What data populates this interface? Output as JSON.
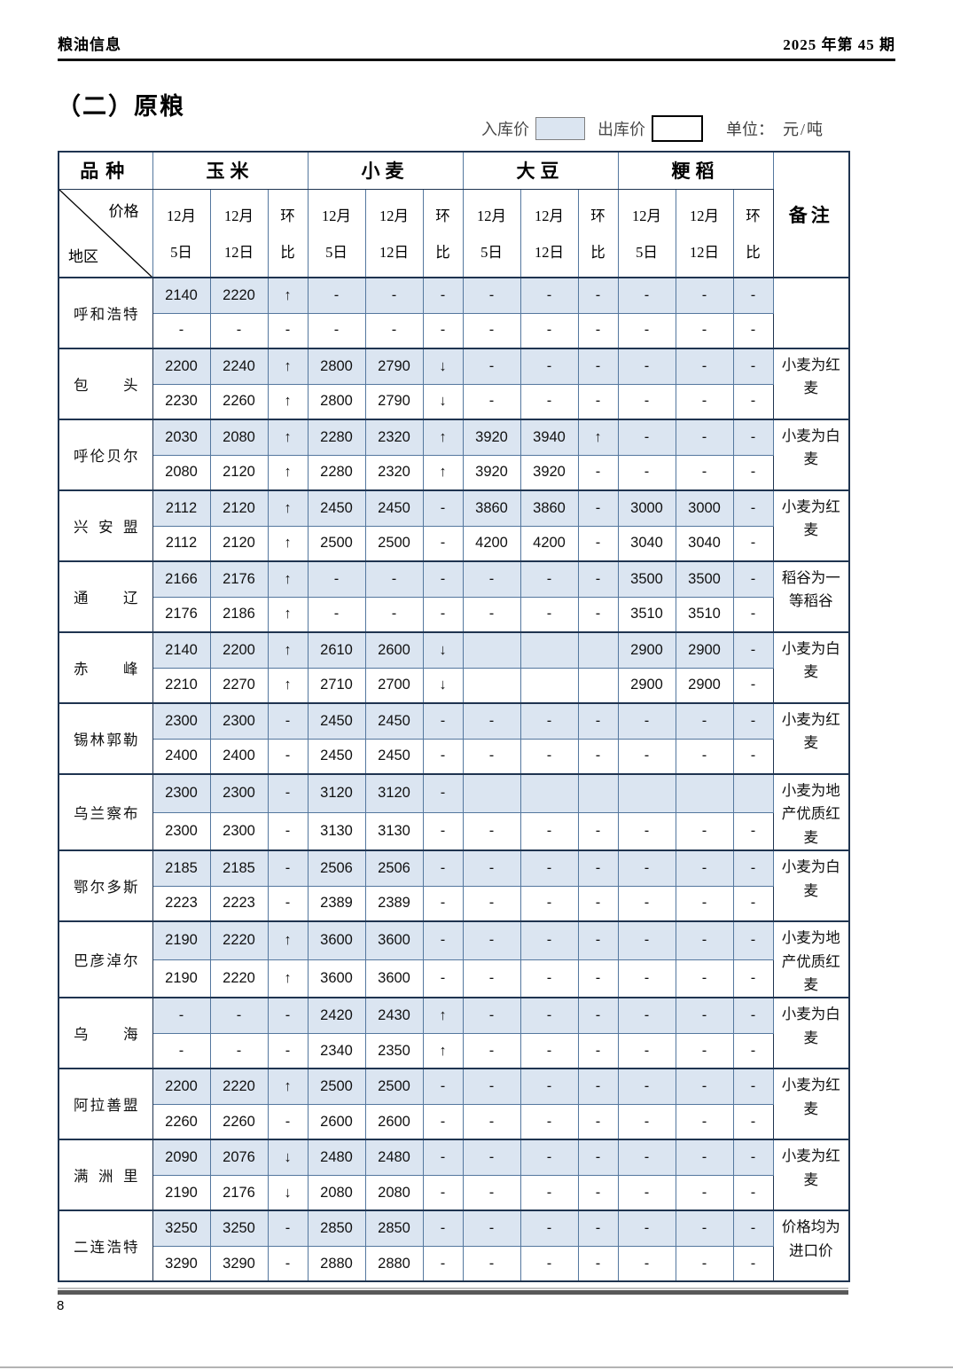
{
  "header": {
    "left": "粮油信息",
    "right": "2025 年第 45 期"
  },
  "section": {
    "title": "（二）原粮"
  },
  "legend": {
    "in_price": "入库价",
    "out_price": "出库价",
    "unit_label": "单位：",
    "unit_value": "元/吨"
  },
  "page": {
    "number": "8"
  },
  "table": {
    "corner": {
      "top_left": "品种",
      "price": "价格",
      "region": "地区"
    },
    "groups": [
      "玉米",
      "小麦",
      "大豆",
      "粳稻"
    ],
    "sub_headers": {
      "date1": [
        "12月",
        "5日"
      ],
      "date2": [
        "12月",
        "12日"
      ],
      "ratio": [
        "环",
        "比"
      ]
    },
    "remark_header": "备注",
    "row_types": {
      "in": "入库价",
      "out": "出库价"
    },
    "regions": [
      {
        "name": "呼和浩特",
        "in": [
          "2140",
          "2220",
          "↑",
          "-",
          "-",
          "-",
          "-",
          "-",
          "-",
          "-",
          "-",
          "-"
        ],
        "out": [
          "-",
          "-",
          "-",
          "-",
          "-",
          "-",
          "-",
          "-",
          "-",
          "-",
          "-",
          "-"
        ],
        "remark": ""
      },
      {
        "name": "包头",
        "in": [
          "2200",
          "2240",
          "↑",
          "2800",
          "2790",
          "↓",
          "-",
          "-",
          "-",
          "-",
          "-",
          "-"
        ],
        "out": [
          "2230",
          "2260",
          "↑",
          "2800",
          "2790",
          "↓",
          "-",
          "-",
          "-",
          "-",
          "-",
          "-"
        ],
        "remark": "小麦为红\n麦"
      },
      {
        "name": "呼伦贝尔",
        "in": [
          "2030",
          "2080",
          "↑",
          "2280",
          "2320",
          "↑",
          "3920",
          "3940",
          "↑",
          "-",
          "-",
          "-"
        ],
        "out": [
          "2080",
          "2120",
          "↑",
          "2280",
          "2320",
          "↑",
          "3920",
          "3920",
          "-",
          "-",
          "-",
          "-"
        ],
        "remark": "小麦为白\n麦"
      },
      {
        "name": "兴安盟",
        "in": [
          "2112",
          "2120",
          "↑",
          "2450",
          "2450",
          "-",
          "3860",
          "3860",
          "-",
          "3000",
          "3000",
          "-"
        ],
        "out": [
          "2112",
          "2120",
          "↑",
          "2500",
          "2500",
          "-",
          "4200",
          "4200",
          "-",
          "3040",
          "3040",
          "-"
        ],
        "remark": "小麦为红\n麦"
      },
      {
        "name": "通辽",
        "in": [
          "2166",
          "2176",
          "↑",
          "-",
          "-",
          "-",
          "-",
          "-",
          "-",
          "3500",
          "3500",
          "-"
        ],
        "out": [
          "2176",
          "2186",
          "↑",
          "-",
          "-",
          "-",
          "-",
          "-",
          "-",
          "3510",
          "3510",
          "-"
        ],
        "remark": "稻谷为一\n等稻谷"
      },
      {
        "name": "赤峰",
        "in": [
          "2140",
          "2200",
          "↑",
          "2610",
          "2600",
          "↓",
          "",
          "",
          "",
          "2900",
          "2900",
          "-"
        ],
        "out": [
          "2210",
          "2270",
          "↑",
          "2710",
          "2700",
          "↓",
          "",
          "",
          "",
          "2900",
          "2900",
          "-"
        ],
        "remark": "小麦为白\n麦"
      },
      {
        "name": "锡林郭勒",
        "in": [
          "2300",
          "2300",
          "-",
          "2450",
          "2450",
          "-",
          "-",
          "-",
          "-",
          "-",
          "-",
          "-"
        ],
        "out": [
          "2400",
          "2400",
          "-",
          "2450",
          "2450",
          "-",
          "-",
          "-",
          "-",
          "-",
          "-",
          "-"
        ],
        "remark": "小麦为红\n麦"
      },
      {
        "name": "乌兰察布",
        "in": [
          "2300",
          "2300",
          "-",
          "3120",
          "3120",
          "-",
          "",
          "",
          "",
          "",
          "",
          ""
        ],
        "out": [
          "2300",
          "2300",
          "-",
          "3130",
          "3130",
          "-",
          "-",
          "-",
          "-",
          "-",
          "-",
          "-"
        ],
        "remark": "小麦为地\n产优质红\n麦"
      },
      {
        "name": "鄂尔多斯",
        "in": [
          "2185",
          "2185",
          "-",
          "2506",
          "2506",
          "-",
          "-",
          "-",
          "-",
          "-",
          "-",
          "-"
        ],
        "out": [
          "2223",
          "2223",
          "-",
          "2389",
          "2389",
          "-",
          "-",
          "-",
          "-",
          "-",
          "-",
          "-"
        ],
        "remark": "小麦为白\n麦"
      },
      {
        "name": "巴彦淖尔",
        "in": [
          "2190",
          "2220",
          "↑",
          "3600",
          "3600",
          "-",
          "-",
          "-",
          "-",
          "-",
          "-",
          "-"
        ],
        "out": [
          "2190",
          "2220",
          "↑",
          "3600",
          "3600",
          "-",
          "-",
          "-",
          "-",
          "-",
          "-",
          "-"
        ],
        "remark": "小麦为地\n产优质红\n麦"
      },
      {
        "name": "乌海",
        "in": [
          "-",
          "-",
          "-",
          "2420",
          "2430",
          "↑",
          "-",
          "-",
          "-",
          "-",
          "-",
          "-"
        ],
        "out": [
          "-",
          "-",
          "-",
          "2340",
          "2350",
          "↑",
          "-",
          "-",
          "-",
          "-",
          "-",
          "-"
        ],
        "remark": "小麦为白\n麦"
      },
      {
        "name": "阿拉善盟",
        "in": [
          "2200",
          "2220",
          "↑",
          "2500",
          "2500",
          "-",
          "-",
          "-",
          "-",
          "-",
          "-",
          "-"
        ],
        "out": [
          "2260",
          "2260",
          "-",
          "2600",
          "2600",
          "-",
          "-",
          "-",
          "-",
          "-",
          "-",
          "-"
        ],
        "remark": "小麦为红\n麦"
      },
      {
        "name": "满洲里",
        "in": [
          "2090",
          "2076",
          "↓",
          "2480",
          "2480",
          "-",
          "-",
          "-",
          "-",
          "-",
          "-",
          "-"
        ],
        "out": [
          "2190",
          "2176",
          "↓",
          "2080",
          "2080",
          "-",
          "-",
          "-",
          "-",
          "-",
          "-",
          "-"
        ],
        "remark": "小麦为红\n麦"
      },
      {
        "name": "二连浩特",
        "in": [
          "3250",
          "3250",
          "-",
          "2850",
          "2850",
          "-",
          "-",
          "-",
          "-",
          "-",
          "-",
          "-"
        ],
        "out": [
          "3290",
          "3290",
          "-",
          "2880",
          "2880",
          "-",
          "-",
          "-",
          "-",
          "-",
          "-",
          "-"
        ],
        "remark": "价格均为\n进口价"
      }
    ]
  },
  "colors": {
    "in_row_bg": "#dbe5f1",
    "border_dark": "#1f3450",
    "border_light": "#54779e",
    "remark_text": "#8c8c8c"
  }
}
